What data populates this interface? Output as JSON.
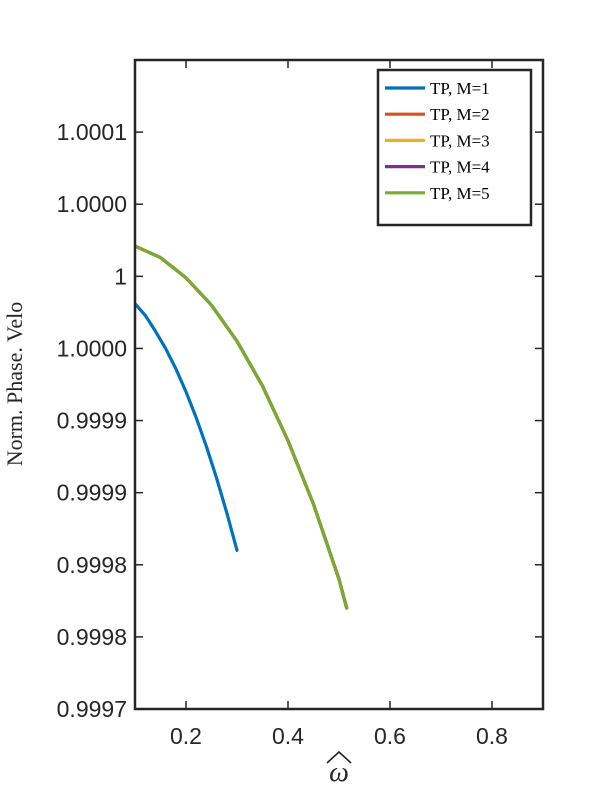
{
  "chart_data": {
    "type": "line",
    "title": "",
    "xlabel": "ω",
    "xlabel_accent": "hat",
    "ylabel": "Norm.  Phase.  Velo",
    "xlim": [
      0.1,
      0.9
    ],
    "ylim": [
      0.9997,
      1.00015
    ],
    "xticks": [
      0.2,
      0.4,
      0.6,
      0.8
    ],
    "xtick_labels": [
      "0.2",
      "0.4",
      "0.6",
      "0.8"
    ],
    "yticks": [
      0.9997,
      0.99975,
      0.9998,
      0.99985,
      0.9999,
      0.99995,
      1.0,
      1.00005,
      1.0001
    ],
    "ytick_labels": [
      "0.9997",
      "0.9998",
      "0.9998",
      "0.9999",
      "0.9999",
      "1.0000",
      "1",
      "1.0000",
      "1.0001"
    ],
    "grid": false,
    "legend_position": "top-right",
    "series": [
      {
        "name": "TP, M=1",
        "color": "#0072BD",
        "x": [
          0.1,
          0.12,
          0.14,
          0.16,
          0.18,
          0.2,
          0.22,
          0.24,
          0.26,
          0.28,
          0.3
        ],
        "y": [
          0.999981,
          0.999973,
          0.999962,
          0.99995,
          0.999936,
          0.99992,
          0.999902,
          0.999882,
          0.99986,
          0.999836,
          0.99981
        ]
      },
      {
        "name": "TP, M=2",
        "color": "#D95319",
        "x": [
          0.1,
          0.15,
          0.2,
          0.25,
          0.3,
          0.35,
          0.4,
          0.45,
          0.5,
          0.515
        ],
        "y": [
          1.000021,
          1.000013,
          0.999999,
          0.99998,
          0.999955,
          0.999924,
          0.999886,
          0.999842,
          0.99979,
          0.99977
        ]
      },
      {
        "name": "TP, M=3",
        "color": "#EDB120",
        "x": [
          0.1,
          0.15,
          0.2,
          0.25,
          0.3,
          0.35,
          0.4,
          0.45,
          0.5,
          0.515
        ],
        "y": [
          1.000021,
          1.000013,
          0.999999,
          0.99998,
          0.999955,
          0.999924,
          0.999886,
          0.999842,
          0.99979,
          0.99977
        ]
      },
      {
        "name": "TP, M=4",
        "color": "#7E2F8E",
        "x": [
          0.1,
          0.15,
          0.2,
          0.25,
          0.3,
          0.35,
          0.4,
          0.45,
          0.5,
          0.515
        ],
        "y": [
          1.000021,
          1.000013,
          0.999999,
          0.99998,
          0.999955,
          0.999924,
          0.999886,
          0.999842,
          0.99979,
          0.99977
        ]
      },
      {
        "name": "TP, M=5",
        "color": "#77AC30",
        "x": [
          0.1,
          0.15,
          0.2,
          0.25,
          0.3,
          0.35,
          0.4,
          0.45,
          0.5,
          0.515
        ],
        "y": [
          1.000021,
          1.000013,
          0.999999,
          0.99998,
          0.999955,
          0.999924,
          0.999886,
          0.999842,
          0.99979,
          0.99977
        ]
      }
    ]
  }
}
